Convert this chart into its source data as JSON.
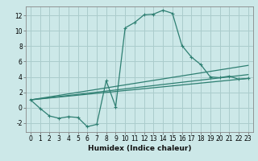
{
  "title": "",
  "xlabel": "Humidex (Indice chaleur)",
  "bg_color": "#cce8e8",
  "grid_color": "#aacccc",
  "line_color": "#2e7f72",
  "xlim": [
    -0.5,
    23.5
  ],
  "ylim": [
    -3.2,
    13.2
  ],
  "xticks": [
    0,
    1,
    2,
    3,
    4,
    5,
    6,
    7,
    8,
    9,
    10,
    11,
    12,
    13,
    14,
    15,
    16,
    17,
    18,
    19,
    20,
    21,
    22,
    23
  ],
  "yticks": [
    -2,
    0,
    2,
    4,
    6,
    8,
    10,
    12
  ],
  "curve1_x": [
    0,
    1,
    2,
    3,
    4,
    5,
    6,
    7,
    8,
    9,
    10,
    11,
    12,
    13,
    14,
    15,
    16,
    17,
    18,
    19,
    20,
    21,
    22,
    23
  ],
  "curve1_y": [
    1.0,
    -0.1,
    -1.1,
    -1.4,
    -1.2,
    -1.3,
    -2.5,
    -2.2,
    3.5,
    0.1,
    10.4,
    11.1,
    12.1,
    12.2,
    12.7,
    12.3,
    8.1,
    6.6,
    5.6,
    4.0,
    3.9,
    4.1,
    3.7,
    3.8
  ],
  "curve2_x": [
    0,
    23
  ],
  "curve2_y": [
    1.0,
    5.5
  ],
  "curve3_x": [
    0,
    23
  ],
  "curve3_y": [
    1.0,
    4.3
  ],
  "curve4_x": [
    0,
    23
  ],
  "curve4_y": [
    1.0,
    3.8
  ],
  "xlabel_fontsize": 6.5,
  "tick_fontsize": 5.5,
  "lw": 0.9,
  "marker_size": 3.0
}
